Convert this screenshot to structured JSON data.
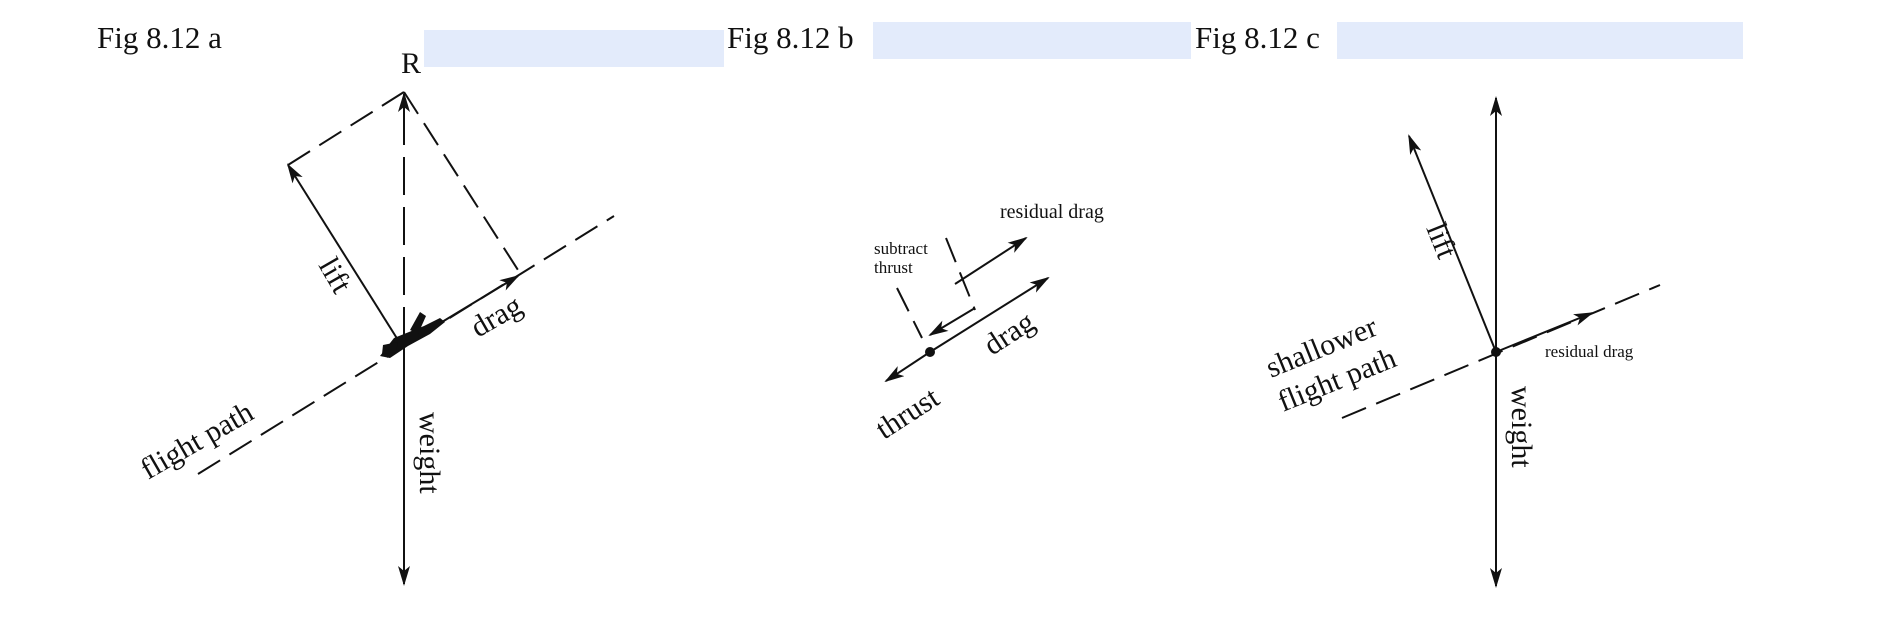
{
  "figures": {
    "a": {
      "title": "Fig 8.12 a",
      "labels": {
        "resultant": "R",
        "lift": "lift",
        "drag": "drag",
        "weight": "weight",
        "flight_path": "flight path"
      }
    },
    "b": {
      "title": "Fig 8.12 b",
      "labels": {
        "residual_drag": "residual drag",
        "subtract_line1": "subtract",
        "subtract_line2": "thrust",
        "drag": "drag",
        "thrust": "thrust"
      }
    },
    "c": {
      "title": "Fig 8.12 c",
      "labels": {
        "lift": "lift",
        "shallower_line1": "shallower",
        "shallower_line2": "flight path",
        "residual_drag": "residual drag",
        "weight": "weight"
      }
    }
  },
  "colors": {
    "ink": "#111111",
    "highlight": "#e3ebfb",
    "background": "#ffffff"
  }
}
